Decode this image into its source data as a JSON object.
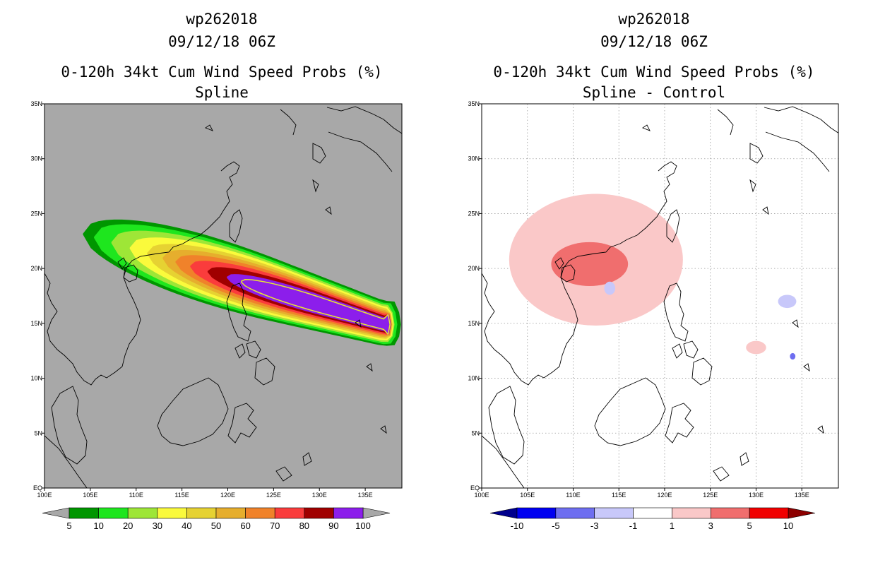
{
  "chart_data": [
    {
      "type": "heatmap",
      "storm_id": "wp262018",
      "datetime": "09/12/18 06Z",
      "title": "0-120h 34kt Cum Wind Speed Probs (%)",
      "subtitle": "Spline",
      "background_color": "#a8a8a8",
      "xlim": [
        100,
        139
      ],
      "ylim": [
        0,
        35
      ],
      "xticks": [
        "100E",
        "105E",
        "110E",
        "115E",
        "120E",
        "125E",
        "130E",
        "135E"
      ],
      "yticks": [
        "EQ",
        "5N",
        "10N",
        "15N",
        "20N",
        "25N",
        "30N",
        "35N"
      ],
      "colorbar": {
        "labels": [
          "5",
          "10",
          "20",
          "30",
          "40",
          "50",
          "60",
          "70",
          "80",
          "90",
          "100"
        ],
        "colors": [
          "#009600",
          "#1ee61e",
          "#9ee637",
          "#fafa3c",
          "#e6d232",
          "#e6ae2d",
          "#f0822a",
          "#fa3c3c",
          "#a00000",
          "#8c1eeb"
        ]
      },
      "contours": [
        {
          "level": 5,
          "lon_range": [
            104.2,
            138.2
          ],
          "track_start": [
            109.5,
            21.5
          ],
          "lat_halfwidth_max": 4.3
        },
        {
          "level": 10,
          "lon_range": [
            105.4,
            137.8
          ]
        },
        {
          "level": 20,
          "lon_range": [
            107.3,
            137.5
          ]
        },
        {
          "level": 30,
          "lon_range": [
            109.3,
            137.4
          ]
        },
        {
          "level": 40,
          "lon_range": [
            111.2,
            137.3
          ]
        },
        {
          "level": 50,
          "lon_range": [
            112.9,
            137.2
          ]
        },
        {
          "level": 60,
          "lon_range": [
            114.3,
            137.2
          ]
        },
        {
          "level": 70,
          "lon_range": [
            115.9,
            137.1
          ]
        },
        {
          "level": 80,
          "lon_range": [
            117.8,
            137.1
          ]
        },
        {
          "level": 90,
          "lon_range": [
            119.9,
            137.1
          ]
        },
        {
          "level": 100,
          "lon_range": [
            121.5,
            137.0
          ]
        }
      ]
    },
    {
      "type": "heatmap",
      "storm_id": "wp262018",
      "datetime": "09/12/18 06Z",
      "title": "0-120h 34kt Cum Wind Speed Probs (%)",
      "subtitle": "Spline - Control",
      "background_color": "#ffffff",
      "xlim": [
        100,
        139
      ],
      "ylim": [
        0,
        35
      ],
      "xticks": [
        "100E",
        "105E",
        "110E",
        "115E",
        "120E",
        "125E",
        "130E",
        "135E"
      ],
      "yticks": [
        "EQ",
        "5N",
        "10N",
        "15N",
        "20N",
        "25N",
        "30N",
        "35N"
      ],
      "colorbar": {
        "labels": [
          "-10",
          "-5",
          "-3",
          "-1",
          "1",
          "3",
          "5",
          "10"
        ],
        "colors": [
          "#00008c",
          "#0000f0",
          "#6e6ef0",
          "#c8c8fa",
          "#ffffff",
          "#fac8c8",
          "#f06e6e",
          "#f00000",
          "#8c0000"
        ]
      },
      "regions": [
        {
          "level": "1 to 3",
          "center": [
            112.5,
            20.8
          ]
        },
        {
          "level": "3 to 5",
          "center": [
            111.8,
            20.4
          ]
        },
        {
          "level": "-1 to -3",
          "center": [
            114.0,
            18.2
          ]
        },
        {
          "level": "-1 to -3",
          "center": [
            133.4,
            17.0
          ]
        },
        {
          "level": "1 to 3",
          "center": [
            130.0,
            12.8
          ]
        },
        {
          "level": "-3 to -5",
          "center": [
            134.0,
            12.0
          ]
        }
      ]
    }
  ]
}
